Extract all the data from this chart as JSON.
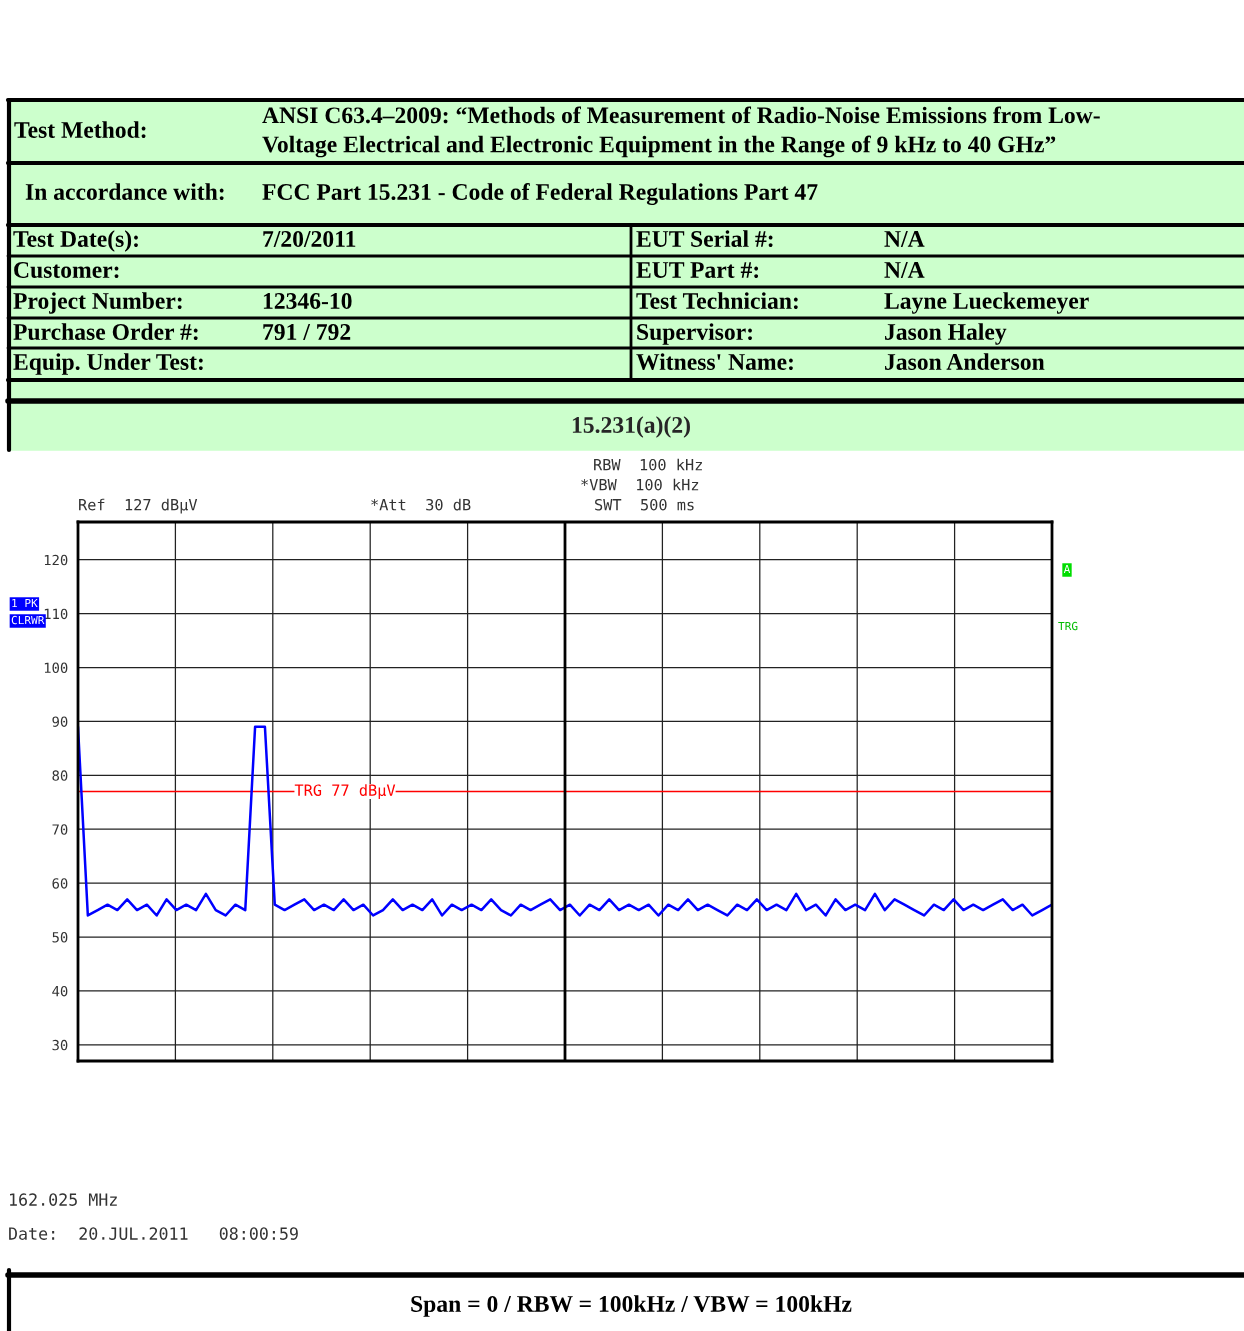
{
  "chart_data": {
    "type": "line",
    "title": "15.231(a)(2)",
    "categories": [
      null,
      null,
      null,
      null,
      null,
      null,
      null,
      null,
      null,
      null,
      null,
      null,
      null,
      null,
      null,
      null,
      null,
      null,
      null,
      null,
      null,
      null,
      null,
      null,
      null,
      null,
      null,
      null,
      null,
      null,
      null,
      null,
      null,
      null,
      null,
      null,
      null,
      null,
      null,
      null,
      null,
      null,
      null,
      null,
      null,
      null,
      null,
      null,
      null,
      null,
      null,
      null,
      null,
      null,
      null,
      null,
      null,
      null,
      null,
      null,
      null,
      null,
      null,
      null,
      null,
      null,
      null,
      null,
      null,
      null,
      null,
      null,
      null,
      null,
      null,
      null,
      null,
      null,
      null,
      null,
      null,
      null,
      null,
      null,
      null,
      null,
      null,
      null,
      null,
      null,
      null,
      null,
      null,
      null,
      null,
      null,
      null,
      null,
      null,
      null
    ],
    "series": [
      {
        "color": "#0000ff",
        "values": [
          89,
          54,
          55,
          56,
          55,
          57,
          55,
          56,
          54,
          57,
          55,
          56,
          55,
          58,
          55,
          54,
          56,
          55,
          89,
          89,
          56,
          55,
          56,
          57,
          55,
          56,
          55,
          57,
          55,
          56,
          54,
          55,
          57,
          55,
          56,
          55,
          57,
          54,
          56,
          55,
          56,
          55,
          57,
          55,
          54,
          56,
          55,
          56,
          57,
          55,
          56,
          54,
          56,
          55,
          57,
          55,
          56,
          55,
          56,
          54,
          56,
          55,
          57,
          55,
          56,
          55,
          54,
          56,
          55,
          57,
          55,
          56,
          55,
          58,
          55,
          56,
          54,
          57,
          55,
          56,
          55,
          58,
          55,
          57,
          56,
          55,
          54,
          56,
          55,
          57,
          55,
          56,
          55,
          56,
          57,
          55,
          56,
          54,
          55,
          56
        ]
      }
    ],
    "ylim": [
      27,
      127
    ],
    "yticks": [
      30,
      40,
      50,
      60,
      70,
      80,
      90,
      100,
      110,
      120
    ],
    "grid": true,
    "legend": false,
    "marker": "none",
    "line_style": "solid",
    "ref_lines": [
      {
        "axis": "y",
        "value": 77,
        "label": "TRG 77 dBµV",
        "color": "#ff0000"
      }
    ],
    "annotations": [
      "Test Method:",
      "ANSI C63.4–2009: “Methods of Measurement of Radio-Noise Emissions from Low-\nVoltage Electrical and Electronic Equipment in the Range of 9 kHz to 40 GHz”",
      "In accordance with:",
      "FCC Part 15.231 - Code of Federal Regulations Part 47",
      "Test Date(s):",
      "7/20/2011",
      "EUT Serial #:",
      "N/A",
      "Customer:",
      "EUT Part #:",
      "N/A",
      "Project Number:",
      "12346-10",
      "Test Technician:",
      "Layne Lueckemeyer",
      "Purchase Order #:",
      "791 / 792",
      "Supervisor:",
      "Jason Haley",
      "Equip. Under Test:",
      "Witness' Name:",
      "Jason Anderson",
      "Ref  127 dBµV",
      "*Att  30 dB",
      "RBW  100 kHz",
      "*VBW  100 kHz",
      "SWT  500 ms",
      "1 PK",
      "CLRWR",
      "A",
      "TRG",
      "162.025 MHz",
      "Date:  20.JUL.2011   08:00:59",
      "Span = 0 / RBW = 100kHz / VBW = 100kHz"
    ]
  }
}
